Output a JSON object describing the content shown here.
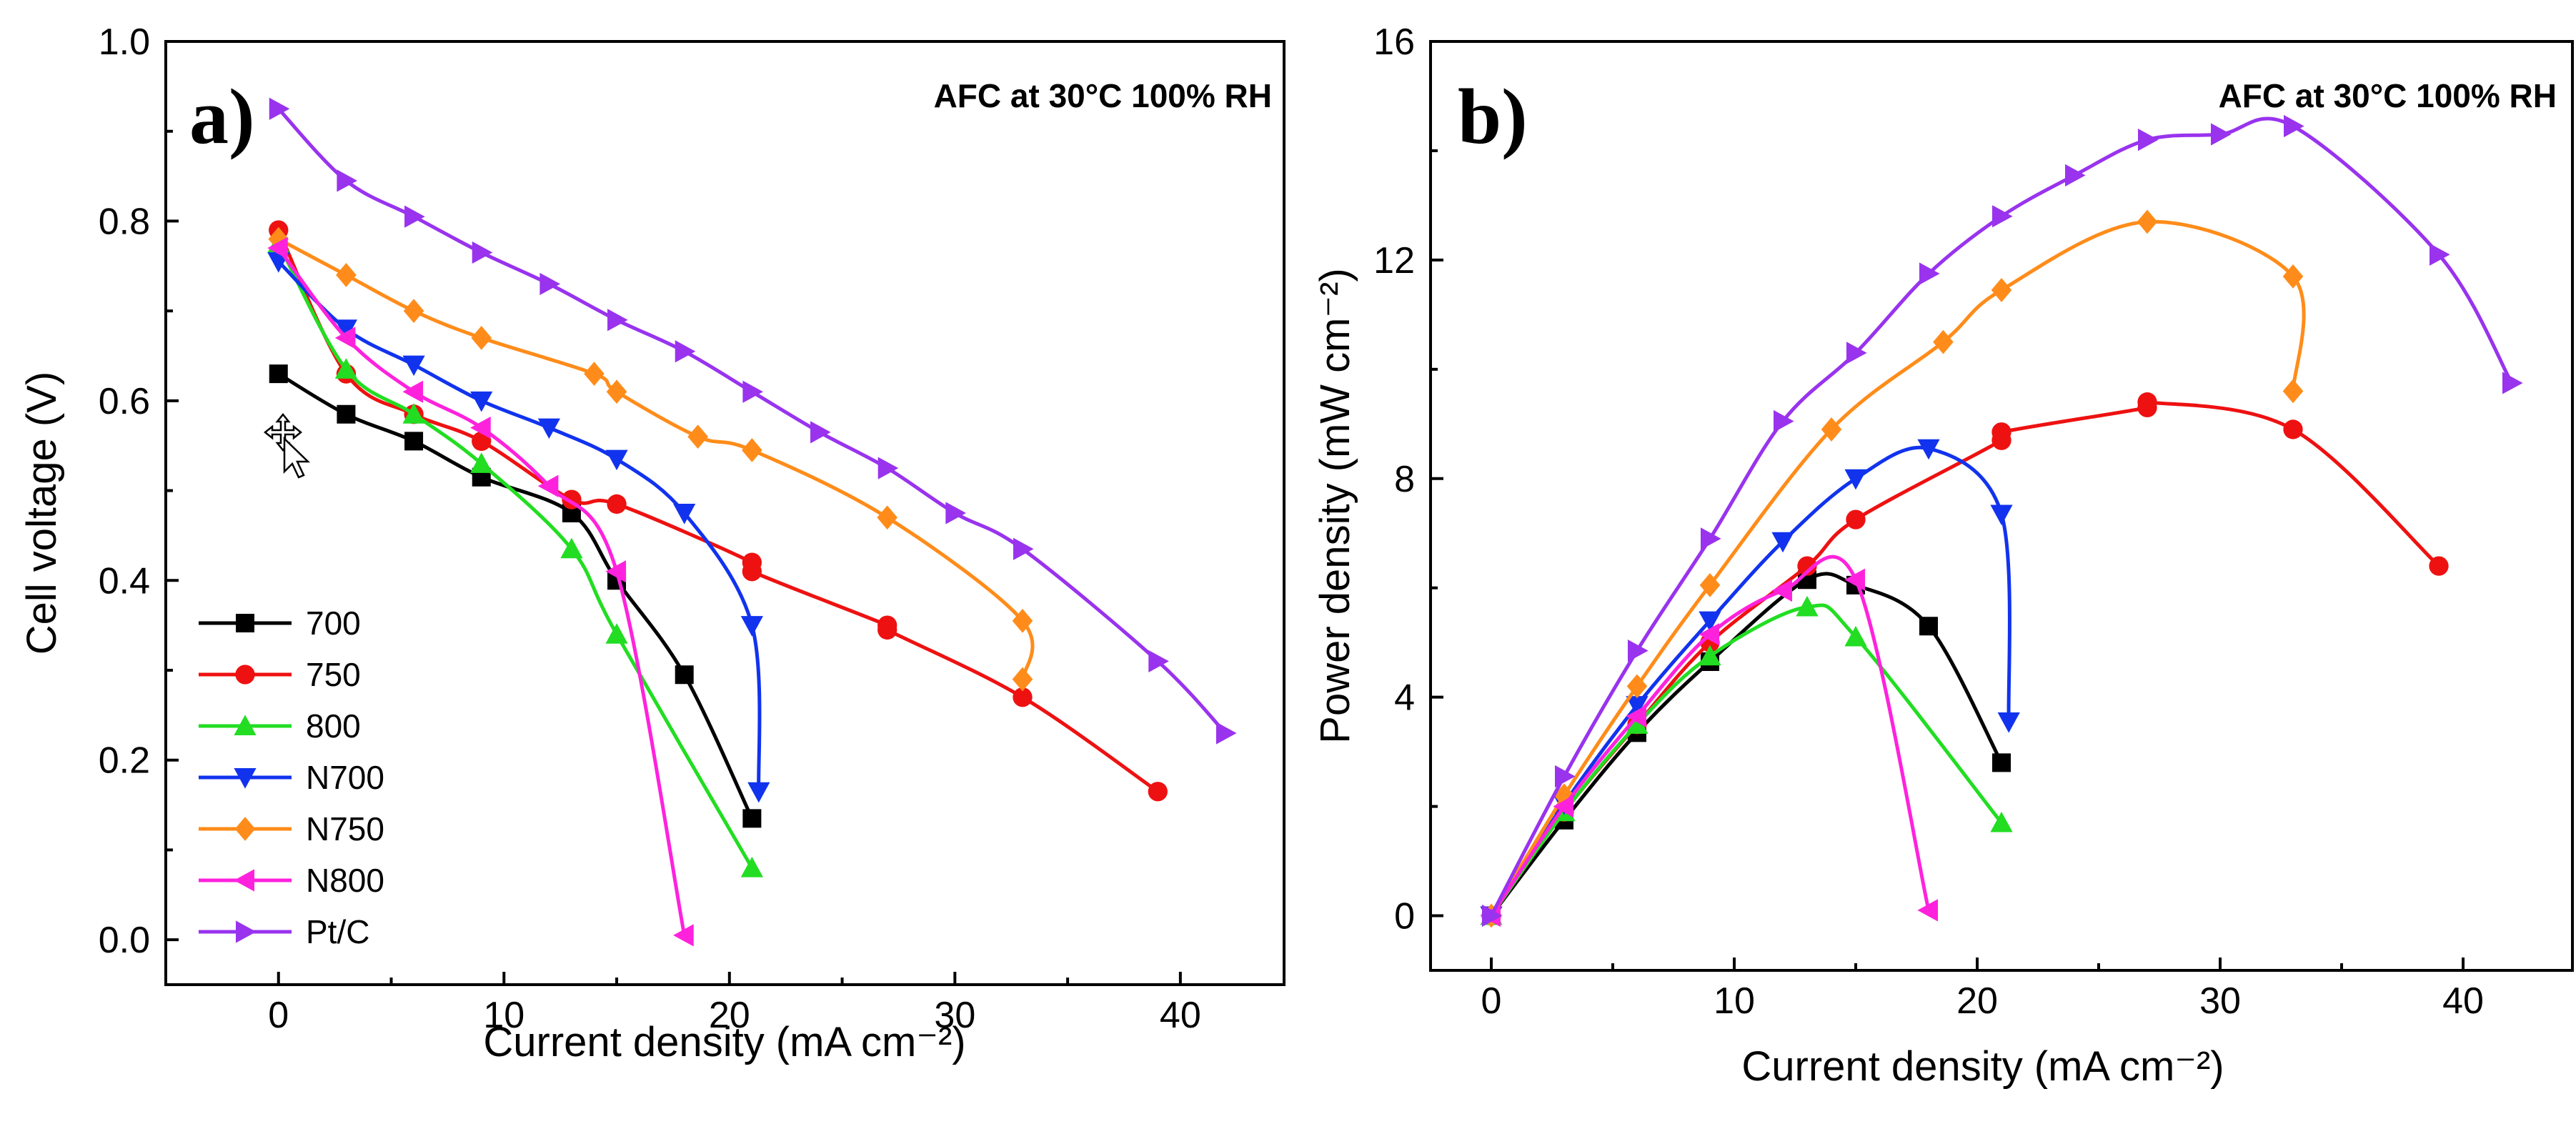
{
  "chart_data": [
    {
      "id": "a",
      "type": "line",
      "panel_label": "a)",
      "annotation": "AFC at 30°C 100% RH",
      "xlabel": "Current density (mA cm⁻²)",
      "ylabel": "Cell voltage (V)",
      "xlim": [
        -5,
        44.6
      ],
      "ylim": [
        -0.05,
        1.0
      ],
      "xticks": [
        0,
        10,
        20,
        30,
        40
      ],
      "yticks": [
        0.0,
        0.2,
        0.4,
        0.6,
        0.8,
        1.0
      ],
      "ytick_labels": [
        "0.0",
        "0.2",
        "0.4",
        "0.6",
        "0.8",
        "1.0"
      ],
      "legend_position": "bottom-left",
      "series": [
        {
          "name": "700",
          "color": "#000000",
          "marker": "square",
          "x": [
            0,
            3,
            6,
            9,
            13,
            15,
            18,
            21
          ],
          "y": [
            0.63,
            0.585,
            0.555,
            0.515,
            0.475,
            0.4,
            0.295,
            0.135
          ]
        },
        {
          "name": "750",
          "color": "#ee1111",
          "marker": "circle",
          "x": [
            0,
            3,
            6,
            9,
            13,
            15,
            21,
            21,
            27,
            27,
            33,
            39
          ],
          "y": [
            0.79,
            0.63,
            0.585,
            0.555,
            0.49,
            0.485,
            0.42,
            0.41,
            0.35,
            0.345,
            0.27,
            0.165
          ]
        },
        {
          "name": "800",
          "color": "#22dd22",
          "marker": "triangle-up",
          "x": [
            0,
            3,
            6,
            9,
            13,
            15,
            21
          ],
          "y": [
            0.775,
            0.635,
            0.585,
            0.53,
            0.435,
            0.34,
            0.08
          ]
        },
        {
          "name": "N700",
          "color": "#1133ee",
          "marker": "triangle-down",
          "x": [
            0,
            3,
            6,
            9,
            12,
            15,
            18,
            21,
            21.3
          ],
          "y": [
            0.755,
            0.68,
            0.64,
            0.6,
            0.57,
            0.535,
            0.475,
            0.35,
            0.165
          ]
        },
        {
          "name": "N750",
          "color": "#ff8c1a",
          "marker": "diamond",
          "x": [
            0,
            3,
            6,
            9,
            14,
            15,
            18.6,
            21,
            27,
            33,
            33
          ],
          "y": [
            0.78,
            0.74,
            0.7,
            0.67,
            0.63,
            0.61,
            0.56,
            0.545,
            0.47,
            0.355,
            0.29
          ]
        },
        {
          "name": "N800",
          "color": "#ff22dd",
          "marker": "triangle-left",
          "x": [
            0,
            3,
            6,
            9,
            12,
            15,
            18
          ],
          "y": [
            0.77,
            0.67,
            0.61,
            0.57,
            0.505,
            0.41,
            0.005
          ]
        },
        {
          "name": "Pt/C",
          "color": "#9933ee",
          "marker": "triangle-right",
          "x": [
            0,
            3,
            6,
            9,
            12,
            15,
            18,
            21,
            24,
            27,
            30,
            33,
            39,
            42
          ],
          "y": [
            0.925,
            0.845,
            0.805,
            0.765,
            0.73,
            0.69,
            0.655,
            0.61,
            0.565,
            0.525,
            0.475,
            0.435,
            0.31,
            0.23
          ]
        }
      ]
    },
    {
      "id": "b",
      "type": "line",
      "panel_label": "b)",
      "annotation": "AFC at 30°C 100% RH",
      "xlabel": "Current density (mA cm⁻²)",
      "ylabel": "Power density (mW cm⁻²)",
      "xlim": [
        -2.5,
        44.5
      ],
      "ylim": [
        -1.0,
        16.0
      ],
      "xticks": [
        0,
        10,
        20,
        30,
        40
      ],
      "yticks": [
        0,
        4,
        8,
        12,
        16
      ],
      "ytick_labels": [
        "0",
        "4",
        "8",
        "12",
        "16"
      ],
      "series": [
        {
          "name": "700",
          "color": "#000000",
          "marker": "square",
          "x": [
            0,
            3,
            6,
            9,
            13,
            15,
            18,
            21
          ],
          "y": [
            0,
            1.75,
            3.35,
            4.65,
            6.15,
            6.05,
            5.3,
            2.8
          ]
        },
        {
          "name": "750",
          "color": "#ee1111",
          "marker": "circle",
          "x": [
            0,
            3,
            6,
            9,
            13,
            15,
            21,
            21,
            27,
            27,
            33,
            39
          ],
          "y": [
            0,
            1.9,
            3.5,
            5.0,
            6.4,
            7.25,
            8.7,
            8.85,
            9.3,
            9.4,
            8.9,
            6.4
          ]
        },
        {
          "name": "800",
          "color": "#22dd22",
          "marker": "triangle-up",
          "x": [
            0,
            3,
            6,
            9,
            13,
            15,
            21
          ],
          "y": [
            0,
            1.9,
            3.5,
            4.75,
            5.65,
            5.1,
            1.7
          ]
        },
        {
          "name": "N700",
          "color": "#1133ee",
          "marker": "triangle-down",
          "x": [
            0,
            3,
            6,
            9,
            12,
            15,
            18,
            21,
            21.3
          ],
          "y": [
            0,
            2.05,
            3.85,
            5.4,
            6.85,
            8.0,
            8.55,
            7.35,
            3.55
          ]
        },
        {
          "name": "N750",
          "color": "#ff8c1a",
          "marker": "diamond",
          "x": [
            0,
            3,
            6,
            9,
            14,
            18.6,
            21,
            27,
            33,
            33
          ],
          "y": [
            0,
            2.2,
            4.2,
            6.05,
            8.9,
            10.5,
            11.45,
            12.7,
            11.7,
            9.6
          ]
        },
        {
          "name": "N800",
          "color": "#ff22dd",
          "marker": "triangle-left",
          "x": [
            0,
            3,
            6,
            9,
            12,
            15,
            18
          ],
          "y": [
            0,
            2.0,
            3.65,
            5.15,
            5.95,
            6.15,
            0.1
          ]
        },
        {
          "name": "Pt/C",
          "color": "#9933ee",
          "marker": "triangle-right",
          "x": [
            0,
            3,
            6,
            9,
            12,
            15,
            18,
            21,
            24,
            27,
            30,
            33,
            39,
            42
          ],
          "y": [
            0,
            2.55,
            4.85,
            6.9,
            9.05,
            10.3,
            11.75,
            12.8,
            13.55,
            14.2,
            14.3,
            14.45,
            12.1,
            9.75
          ]
        }
      ]
    }
  ]
}
